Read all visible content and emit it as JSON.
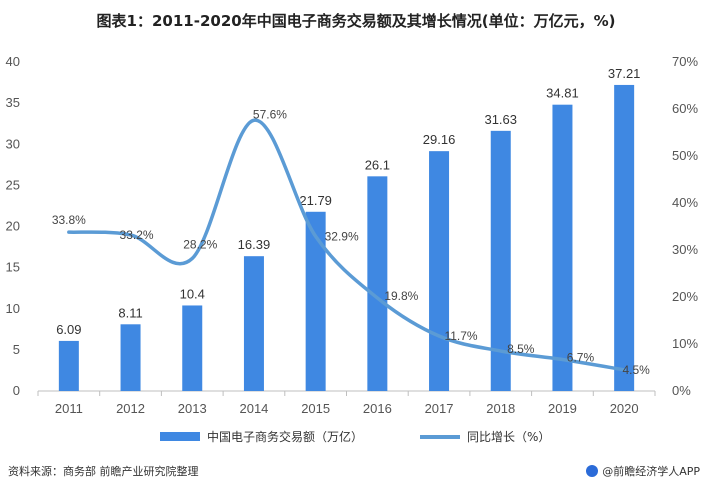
{
  "title": "图表1：2011-2020年中国电子商务交易额及其增长情况(单位：万亿元，%)",
  "source": "资料来源：商务部 前瞻产业研究院整理",
  "brand": "@前瞻经济学人APP",
  "colors": {
    "bar": "#3f88e2",
    "line": "#5b9bd5"
  },
  "chart_data": {
    "type": "bar",
    "categories": [
      "2011",
      "2012",
      "2013",
      "2014",
      "2015",
      "2016",
      "2017",
      "2018",
      "2019",
      "2020"
    ],
    "series": [
      {
        "name": "中国电子商务交易额（万亿）",
        "type": "bar",
        "axis": "left",
        "values": [
          6.09,
          8.11,
          10.4,
          16.39,
          21.79,
          26.1,
          29.16,
          31.63,
          34.81,
          37.21
        ],
        "labels": [
          "6.09",
          "8.11",
          "10.4",
          "16.39",
          "21.79",
          "26.1",
          "29.16",
          "31.63",
          "34.81",
          "37.21"
        ]
      },
      {
        "name": "同比增长（%）",
        "type": "line",
        "axis": "right",
        "values": [
          33.8,
          33.2,
          28.2,
          57.6,
          32.9,
          19.8,
          11.7,
          8.5,
          6.7,
          4.5
        ],
        "labels": [
          "33.8%",
          "33.2%",
          "28.2%",
          "57.6%",
          "32.9%",
          "19.8%",
          "11.7%",
          "8.5%",
          "6.7%",
          "4.5%"
        ]
      }
    ],
    "y_left": {
      "min": 0,
      "max": 40,
      "ticks": [
        "0",
        "5",
        "10",
        "15",
        "20",
        "25",
        "30",
        "35",
        "40"
      ]
    },
    "y_right": {
      "min": 0,
      "max": 70,
      "ticks": [
        "0%",
        "10%",
        "20%",
        "30%",
        "40%",
        "50%",
        "60%",
        "70%"
      ]
    },
    "grid": false,
    "legend": "bottom"
  }
}
